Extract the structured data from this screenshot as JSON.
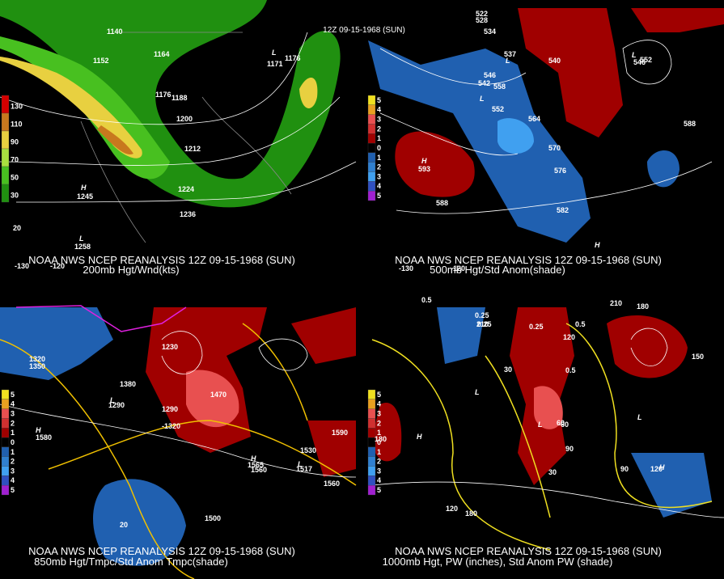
{
  "title": "12Z 09-15-1968 (SUN)",
  "panels": [
    {
      "header": "NOAA NWS NCEP REANALYSIS 12Z 09-15-1968 (SUN)",
      "subtitle": "200mb Hgt/Wnd(kts)",
      "legend": {
        "labels": [
          "130",
          "110",
          "90",
          "70",
          "50",
          "30"
        ],
        "colors": [
          "#d40000",
          "#c8781e",
          "#e8d040",
          "#a8e040",
          "#48c020",
          "#209010"
        ]
      },
      "contour_labels": [
        "1140",
        "1152",
        "1164",
        "1176",
        "1188",
        "1200",
        "1212",
        "1224",
        "1236",
        "H",
        "1245",
        "L",
        "1171",
        "1176",
        "L",
        "1258",
        "20",
        "-130",
        "-120"
      ]
    },
    {
      "header": "NOAA NWS NCEP REANALYSIS 12Z 09-15-1968 (SUN)",
      "subtitle": "500mb Hgt/Std Anom(shade)",
      "legend": {
        "labels": [
          "5",
          "4",
          "3",
          "2",
          "1",
          "0",
          "1",
          "2",
          "3",
          "4",
          "5"
        ],
        "colors": [
          "#f0e020",
          "#e8a020",
          "#e85050",
          "#d03030",
          "#a00000",
          "#000000",
          "#2060b0",
          "#3080d0",
          "#40a0f0",
          "#3050c0",
          "#a020d0"
        ]
      },
      "contour_labels": [
        "522",
        "528",
        "534",
        "540",
        "546",
        "552",
        "558",
        "564",
        "570",
        "576",
        "582",
        "588",
        "588",
        "H",
        "593",
        "L",
        "542",
        "L",
        "537",
        "L",
        "546",
        "552",
        "H",
        "-130",
        "-120"
      ]
    },
    {
      "header": "NOAA NWS NCEP REANALYSIS 12Z 09-15-1968 (SUN)",
      "subtitle": "850mb Hgt/Tmpc/Std Anom Tmpc(shade)",
      "legend": {
        "labels": [
          "5",
          "4",
          "3",
          "2",
          "1",
          "0",
          "1",
          "2",
          "3",
          "4",
          "5"
        ],
        "colors": [
          "#f0e020",
          "#e8a020",
          "#e85050",
          "#d03030",
          "#a00000",
          "#000000",
          "#2060b0",
          "#3080d0",
          "#40a0f0",
          "#3050c0",
          "#a020d0"
        ]
      },
      "contour_labels": [
        "1320",
        "1350",
        "1380",
        "1470",
        "1500",
        "1530",
        "1560",
        "1590",
        "1560",
        "H",
        "1580",
        "L",
        "1290",
        "H",
        "1565",
        "L",
        "1517",
        "20",
        "1230",
        "1290",
        "-1320"
      ]
    },
    {
      "header": "NOAA NWS NCEP REANALYSIS 12Z 09-15-1968 (SUN)",
      "subtitle": "1000mb Hgt, PW (inches), Std Anom PW (shade)",
      "legend": {
        "labels": [
          "5",
          "4",
          "3",
          "2",
          "1",
          "0",
          "1",
          "2",
          "3",
          "4",
          "5"
        ],
        "colors": [
          "#f0e020",
          "#e8a020",
          "#e85050",
          "#d03030",
          "#a00000",
          "#000000",
          "#2060b0",
          "#3080d0",
          "#40a0f0",
          "#3050c0",
          "#a020d0"
        ]
      },
      "contour_labels": [
        "0.5",
        "0.25",
        "0.25",
        "0.5",
        "0.25",
        "0.5",
        "210",
        "180",
        "150",
        "120",
        "90",
        "60",
        "30",
        "180",
        "120",
        "H",
        "210",
        "L",
        "L",
        "H",
        "L",
        "120",
        "-60",
        "30",
        "90",
        "180",
        "120"
      ]
    }
  ]
}
